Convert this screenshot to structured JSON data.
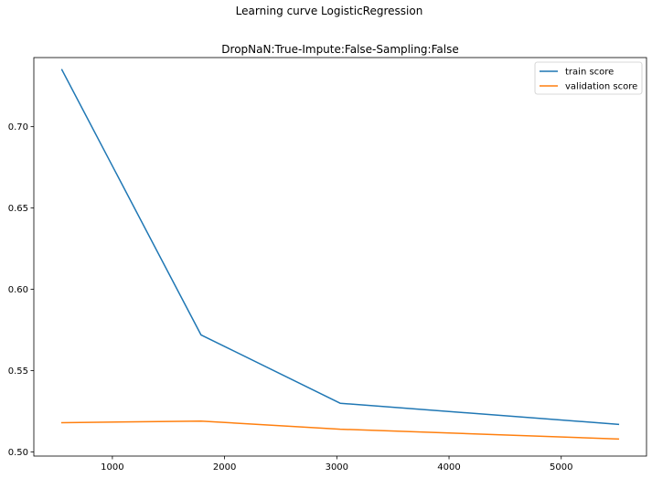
{
  "suptitle": "Learning curve LogisticRegression",
  "chart_data": {
    "type": "line",
    "title": "DropNaN:True-Impute:False-Sampling:False",
    "xlabel": "",
    "ylabel": "",
    "x": [
      550,
      1790,
      3030,
      5510
    ],
    "xlim": [
      300,
      5760
    ],
    "ylim": [
      0.4975,
      0.7425
    ],
    "xticks": [
      1000,
      2000,
      3000,
      4000,
      5000
    ],
    "yticks": [
      0.5,
      0.55,
      0.6,
      0.65,
      0.7
    ],
    "xtick_labels": [
      "1000",
      "2000",
      "3000",
      "4000",
      "5000"
    ],
    "ytick_labels": [
      "0.50",
      "0.55",
      "0.60",
      "0.65",
      "0.70"
    ],
    "grid": false,
    "legend_position": "top-right",
    "series": [
      {
        "name": "train score",
        "color": "#1f77b4",
        "values": [
          0.735,
          0.572,
          0.53,
          0.517
        ]
      },
      {
        "name": "validation score",
        "color": "#ff7f0e",
        "values": [
          0.518,
          0.519,
          0.514,
          0.508
        ]
      }
    ]
  }
}
